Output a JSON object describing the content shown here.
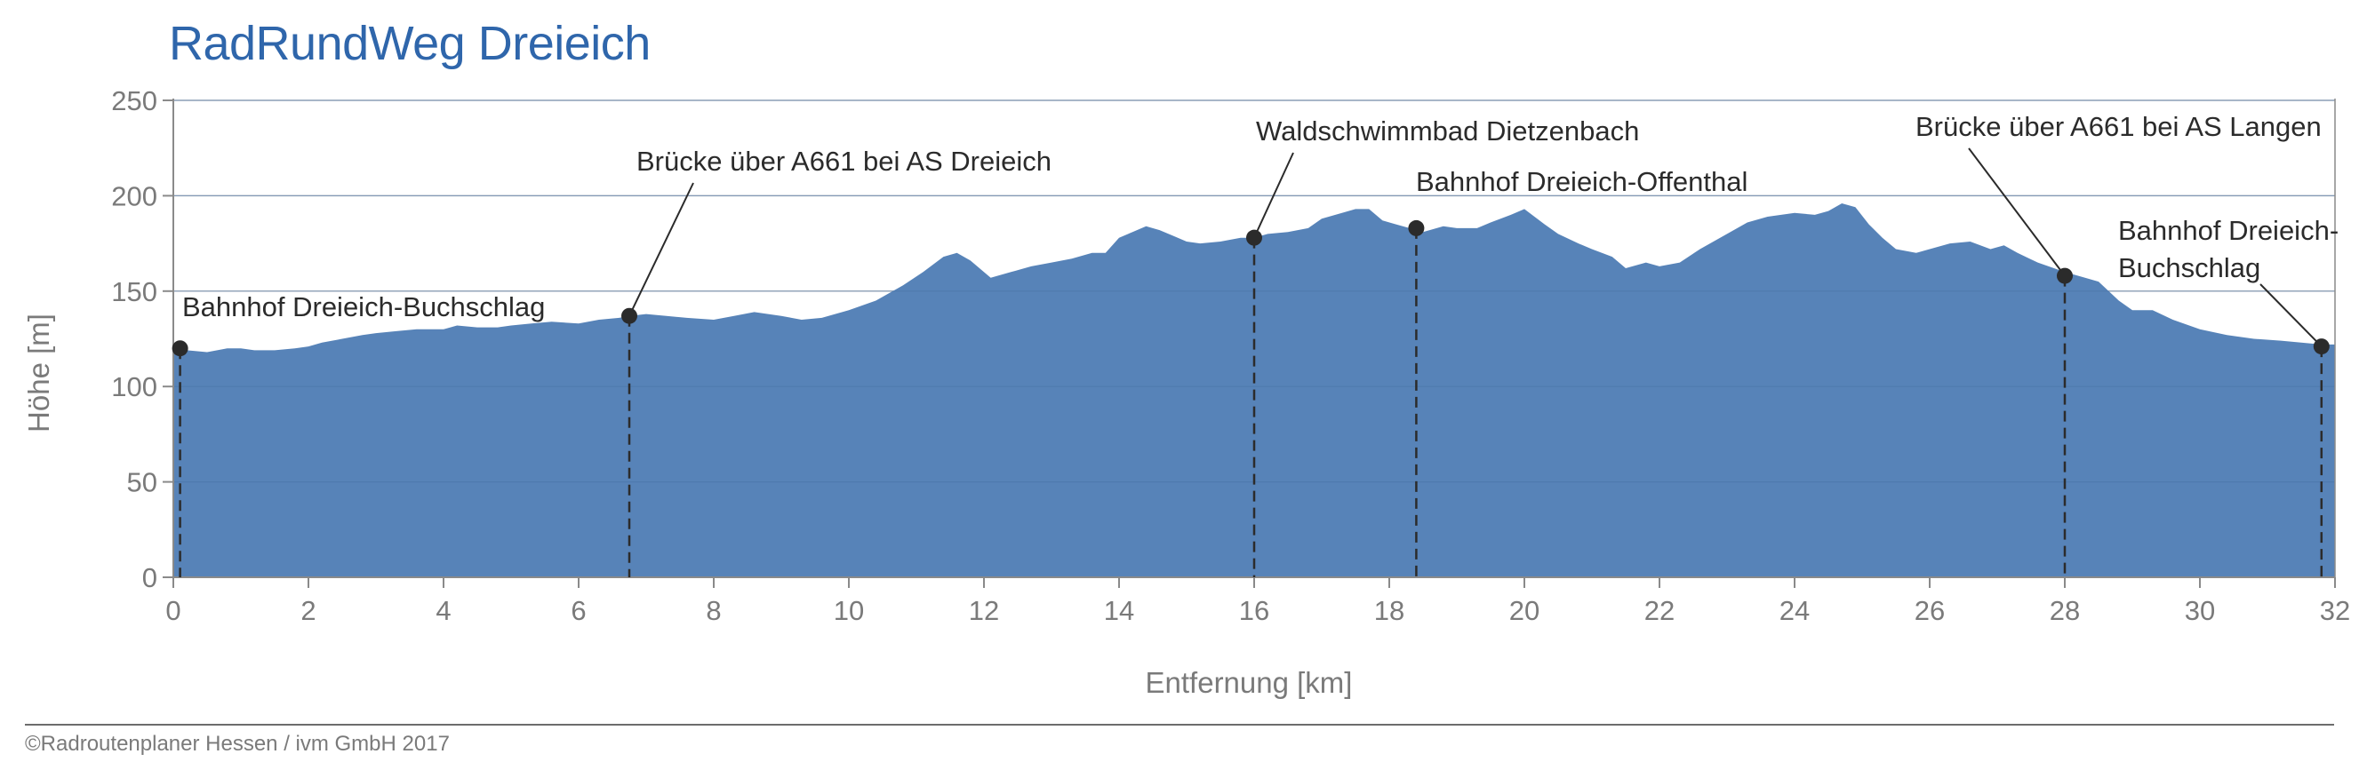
{
  "chart_data": {
    "type": "area",
    "title": "RadRundWeg Dreieich",
    "xlabel": "Entfernung [km]",
    "ylabel": "Höhe [m]",
    "xlim": [
      0,
      32
    ],
    "ylim": [
      0,
      250
    ],
    "xticks": [
      0,
      2,
      4,
      6,
      8,
      10,
      12,
      14,
      16,
      18,
      20,
      22,
      24,
      26,
      28,
      30,
      32
    ],
    "yticks": [
      0,
      50,
      100,
      150,
      200,
      250
    ],
    "grid": true,
    "fill_color": "#5783b8",
    "title_color": "#2f66ab",
    "x": [
      0,
      0.2,
      0.5,
      0.8,
      1.0,
      1.2,
      1.5,
      1.8,
      2.0,
      2.2,
      2.5,
      2.8,
      3.0,
      3.3,
      3.6,
      4.0,
      4.2,
      4.5,
      4.8,
      5.0,
      5.3,
      5.6,
      6.0,
      6.3,
      6.6,
      6.75,
      7.0,
      7.3,
      7.6,
      8.0,
      8.3,
      8.6,
      9.0,
      9.3,
      9.6,
      10.0,
      10.4,
      10.8,
      11.1,
      11.4,
      11.6,
      11.8,
      12.1,
      12.4,
      12.7,
      13.0,
      13.3,
      13.6,
      13.8,
      14.0,
      14.2,
      14.4,
      14.6,
      14.8,
      15.0,
      15.2,
      15.5,
      15.8,
      16.0,
      16.2,
      16.5,
      16.8,
      17.0,
      17.3,
      17.5,
      17.7,
      17.9,
      18.1,
      18.3,
      18.5,
      18.8,
      19.0,
      19.3,
      19.5,
      19.8,
      20.0,
      20.3,
      20.5,
      20.8,
      21.0,
      21.3,
      21.5,
      21.8,
      22.0,
      22.3,
      22.6,
      23.0,
      23.3,
      23.6,
      24.0,
      24.3,
      24.5,
      24.7,
      24.9,
      25.1,
      25.3,
      25.5,
      25.8,
      26.0,
      26.3,
      26.6,
      26.9,
      27.1,
      27.3,
      27.6,
      28.0,
      28.3,
      28.5,
      28.8,
      29.0,
      29.3,
      29.6,
      30.0,
      30.4,
      30.8,
      31.2,
      31.5,
      31.8,
      32.0
    ],
    "y": [
      120,
      119,
      118,
      120,
      120,
      119,
      119,
      120,
      121,
      123,
      125,
      127,
      128,
      129,
      130,
      130,
      132,
      131,
      131,
      132,
      133,
      134,
      133,
      135,
      136,
      137,
      138,
      137,
      136,
      135,
      137,
      139,
      137,
      135,
      136,
      140,
      145,
      153,
      160,
      168,
      170,
      166,
      157,
      160,
      163,
      165,
      167,
      170,
      170,
      178,
      181,
      184,
      182,
      179,
      176,
      175,
      176,
      178,
      178,
      180,
      181,
      183,
      188,
      191,
      193,
      193,
      187,
      185,
      183,
      181,
      184,
      183,
      183,
      186,
      190,
      193,
      185,
      180,
      175,
      172,
      168,
      162,
      165,
      163,
      165,
      172,
      180,
      186,
      189,
      191,
      190,
      192,
      196,
      194,
      185,
      178,
      172,
      170,
      172,
      175,
      176,
      172,
      174,
      170,
      165,
      160,
      157,
      155,
      145,
      140,
      140,
      135,
      130,
      127,
      125,
      124,
      123,
      122,
      122
    ],
    "annotations": [
      {
        "x": 0.1,
        "y": 120,
        "label_lines": [
          "Bahnhof Dreieich-Buchschlag"
        ]
      },
      {
        "x": 6.75,
        "y": 137,
        "label_lines": [
          "Brücke über A661 bei AS Dreieich"
        ]
      },
      {
        "x": 16.0,
        "y": 178,
        "label_lines": [
          "Waldschwimmbad Dietzenbach"
        ]
      },
      {
        "x": 18.4,
        "y": 183,
        "label_lines": [
          "Bahnhof Dreieich-Offenthal"
        ]
      },
      {
        "x": 28.0,
        "y": 158,
        "label_lines": [
          "Brücke über A661 bei AS Langen"
        ]
      },
      {
        "x": 31.8,
        "y": 121,
        "label_lines": [
          "Bahnhof Dreieich-",
          "Buchschlag"
        ]
      }
    ]
  },
  "footer": {
    "copyright": "©Radroutenplaner Hessen / ivm GmbH 2017"
  }
}
